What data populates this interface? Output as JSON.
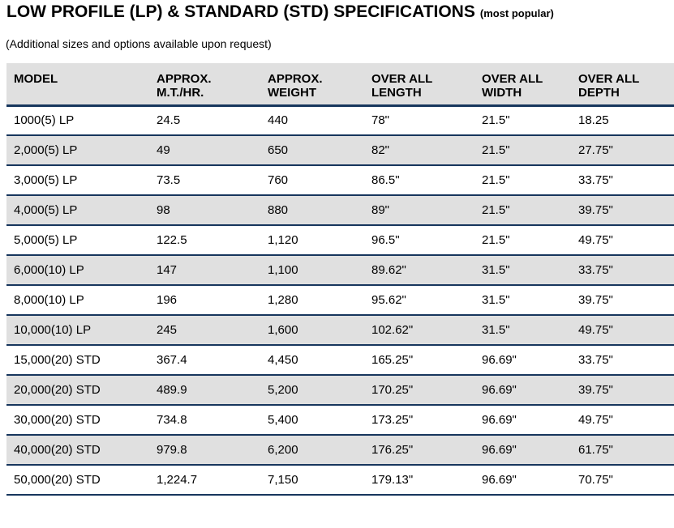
{
  "page": {
    "title": "LOW PROFILE (LP) & STANDARD (STD) SPECIFICATIONS",
    "title_suffix": "(most popular)",
    "subtitle": "(Additional sizes and options available upon request)"
  },
  "table": {
    "columns": [
      {
        "line1": "MODEL",
        "line2": ""
      },
      {
        "line1": "APPROX.",
        "line2": "M.T./HR."
      },
      {
        "line1": "APPROX.",
        "line2": "WEIGHT"
      },
      {
        "line1": "OVER ALL",
        "line2": "LENGTH"
      },
      {
        "line1": "OVER ALL",
        "line2": "WIDTH"
      },
      {
        "line1": "OVER ALL",
        "line2": "DEPTH"
      }
    ],
    "rows": [
      [
        "1000(5) LP",
        "24.5",
        "440",
        "78\"",
        "21.5\"",
        "18.25"
      ],
      [
        "2,000(5) LP",
        "49",
        "650",
        "82\"",
        "21.5\"",
        "27.75\""
      ],
      [
        "3,000(5) LP",
        "73.5",
        "760",
        "86.5\"",
        "21.5\"",
        "33.75\""
      ],
      [
        "4,000(5) LP",
        "98",
        "880",
        "89\"",
        "21.5\"",
        "39.75\""
      ],
      [
        "5,000(5) LP",
        "122.5",
        "1,120",
        "96.5\"",
        "21.5\"",
        "49.75\""
      ],
      [
        "6,000(10) LP",
        "147",
        "1,100",
        "89.62\"",
        "31.5\"",
        "33.75\""
      ],
      [
        "8,000(10) LP",
        "196",
        "1,280",
        "95.62\"",
        "31.5\"",
        "39.75\""
      ],
      [
        "10,000(10) LP",
        "245",
        "1,600",
        "102.62\"",
        "31.5\"",
        "49.75\""
      ],
      [
        "15,000(20) STD",
        "367.4",
        "4,450",
        "165.25\"",
        "96.69\"",
        "33.75\""
      ],
      [
        "20,000(20) STD",
        "489.9",
        "5,200",
        "170.25\"",
        "96.69\"",
        "39.75\""
      ],
      [
        "30,000(20) STD",
        "734.8",
        "5,400",
        "173.25\"",
        "96.69\"",
        "49.75\""
      ],
      [
        "40,000(20) STD",
        "979.8",
        "6,200",
        "176.25\"",
        "96.69\"",
        "61.75\""
      ],
      [
        "50,000(20) STD",
        "1,224.7",
        "7,150",
        "179.13\"",
        "96.69\"",
        "70.75\""
      ]
    ],
    "colors": {
      "border": "#17365d",
      "header_bg": "#e0e0e0",
      "alt_row_bg": "#e0e0e0"
    }
  }
}
